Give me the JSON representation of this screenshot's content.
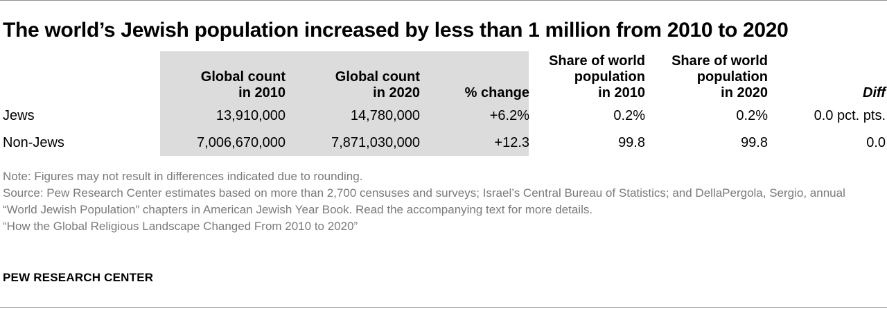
{
  "title": "The world’s Jewish population increased by less than 1 million from 2010 to 2020",
  "chart_data": {
    "type": "table",
    "columns": [
      {
        "key": "count2010",
        "header": [
          "Global count",
          "in 2010"
        ],
        "shaded": true
      },
      {
        "key": "count2020",
        "header": [
          "Global count",
          "in 2020"
        ],
        "shaded": true
      },
      {
        "key": "pct_change",
        "header": [
          "% change"
        ],
        "shaded": true
      },
      {
        "key": "share2010",
        "header": [
          "Share of world",
          "population",
          "in 2010"
        ]
      },
      {
        "key": "share2020",
        "header": [
          "Share of world",
          "population",
          "in 2020"
        ]
      },
      {
        "key": "diff",
        "header": [
          "Diff"
        ],
        "italic": true
      }
    ],
    "rows": [
      {
        "label": "Jews",
        "cells": [
          "13,910,000",
          "14,780,000",
          "+6.2%",
          "0.2%",
          "0.2%",
          "0.0 pct. pts."
        ]
      },
      {
        "label": "Non-Jews",
        "cells": [
          "7,006,670,000",
          "7,871,030,000",
          "+12.3",
          "99.8",
          "99.8",
          "0.0"
        ]
      }
    ],
    "values": {
      "jews": {
        "count2010": 13910000,
        "count2020": 14780000,
        "pct_change": 6.2,
        "share2010": 0.2,
        "share2020": 0.2,
        "diff": 0.0
      },
      "non_jews": {
        "count2010": 7006670000,
        "count2020": 7871030000,
        "pct_change": 12.3,
        "share2010": 99.8,
        "share2020": 99.8,
        "diff": 0.0
      }
    }
  },
  "notes": {
    "note": "Note: Figures may not result in differences indicated due to rounding.",
    "source": "Source: Pew Research Center estimates based on more than 2,700 censuses and surveys; Israel’s Central Bureau of Statistics; and DellaPergola, Sergio, annual “World Jewish Population” chapters in American Jewish Year Book. Read the accompanying text for more details.",
    "report": "“How the Global Religious Landscape Changed From 2010 to 2020”"
  },
  "brand": "PEW RESEARCH CENTER",
  "colors": {
    "shade": "#dcdcdc",
    "note_text": "#7a7a7a",
    "rule": "#8f8f8f"
  }
}
